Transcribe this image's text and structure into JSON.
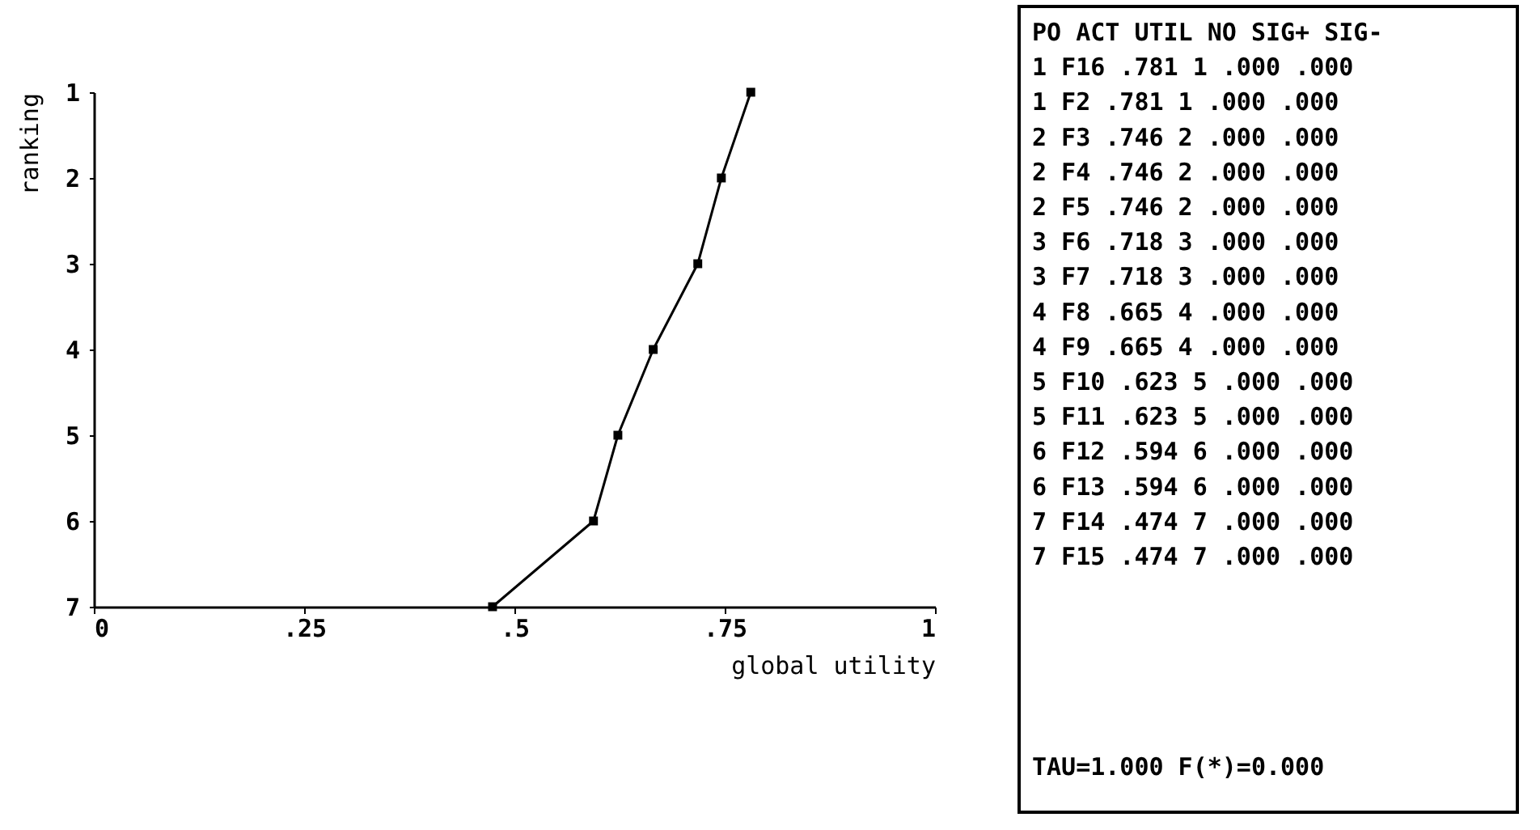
{
  "chart_data": [
    {
      "type": "line",
      "xlabel": "global utility",
      "ylabel": "ranking",
      "x": [
        0.781,
        0.746,
        0.718,
        0.665,
        0.623,
        0.594,
        0.474
      ],
      "series": [
        {
          "color": "#000000",
          "values": [
            1,
            2,
            3,
            4,
            5,
            6,
            7
          ]
        }
      ],
      "xlim": [
        0,
        1
      ],
      "xticks": [
        {
          "value": 0,
          "label": "0"
        },
        {
          "value": 0.25,
          "label": ".25"
        },
        {
          "value": 0.5,
          "label": ".5"
        },
        {
          "value": 0.75,
          "label": ".75"
        },
        {
          "value": 1,
          "label": "1"
        }
      ],
      "ylim": [
        7,
        1
      ],
      "yticks": [
        1,
        2,
        3,
        4,
        5,
        6,
        7
      ],
      "grid": false,
      "legend": false,
      "marker": "square",
      "line_style": "solid"
    },
    {
      "type": "other",
      "annotations": [
        "PO ACT UTIL NO SIG+ SIG-",
        "1 F16 .781 1 .000 .000",
        "1 F2 .781 1 .000 .000",
        "2 F3 .746 2 .000 .000",
        "2 F4 .746 2 .000 .000",
        "2 F5 .746 2 .000 .000",
        "3 F6 .718 3 .000 .000",
        "3 F7 .718 3 .000 .000",
        "4 F8 .665 4 .000 .000",
        "4 F9 .665 4 .000 .000",
        "5 F10 .623 5 .000 .000",
        "5 F11 .623 5 .000 .000",
        "6 F12 .594 6 .000 .000",
        "6 F13 .594 6 .000 .000",
        "7 F14 .474 7 .000 .000",
        "7 F15 .474 7 .000 .000",
        "TAU=1.000 F(*)=0.000"
      ]
    }
  ]
}
